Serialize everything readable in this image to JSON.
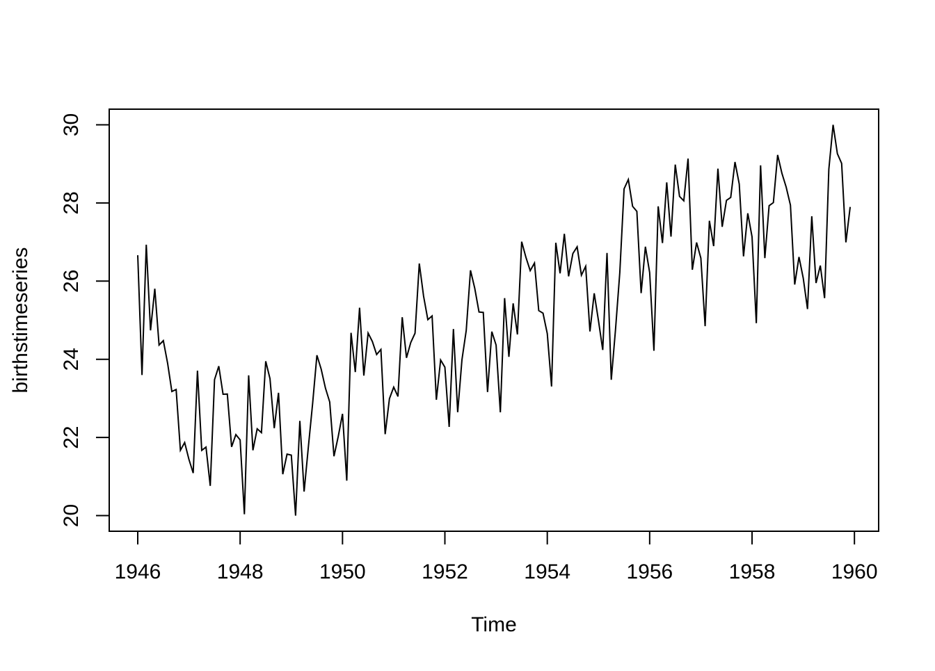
{
  "chart_data": {
    "type": "line",
    "title": "",
    "xlabel": "Time",
    "ylabel": "birthstimeseries",
    "series": [
      {
        "name": "birthstimeseries",
        "x_start_year": 1946,
        "points_per_year": 12,
        "values": [
          26.663,
          23.598,
          26.931,
          24.74,
          25.806,
          24.364,
          24.477,
          23.901,
          23.175,
          23.227,
          21.672,
          21.87,
          21.439,
          21.089,
          23.709,
          21.669,
          21.752,
          20.761,
          23.479,
          23.824,
          23.105,
          23.11,
          21.759,
          22.073,
          21.937,
          20.035,
          23.59,
          21.672,
          22.222,
          22.123,
          23.95,
          23.504,
          22.238,
          23.142,
          21.059,
          21.573,
          21.548,
          20.0,
          22.424,
          20.615,
          21.761,
          22.874,
          24.104,
          23.748,
          23.262,
          22.907,
          21.519,
          22.025,
          22.604,
          20.894,
          24.677,
          23.673,
          25.32,
          23.583,
          24.671,
          24.454,
          24.122,
          24.252,
          22.084,
          22.991,
          23.287,
          23.049,
          25.076,
          24.037,
          24.43,
          24.667,
          26.451,
          25.618,
          25.014,
          25.11,
          22.964,
          23.981,
          23.798,
          22.27,
          24.775,
          22.646,
          23.988,
          24.737,
          26.276,
          25.816,
          25.21,
          25.199,
          23.162,
          24.707,
          24.364,
          22.644,
          25.565,
          24.062,
          25.431,
          24.635,
          27.009,
          26.606,
          26.268,
          26.462,
          25.246,
          25.18,
          24.657,
          23.304,
          26.982,
          26.199,
          27.21,
          26.122,
          26.706,
          26.878,
          26.152,
          26.379,
          24.712,
          25.688,
          24.99,
          24.239,
          26.721,
          23.475,
          24.767,
          26.219,
          28.361,
          28.599,
          27.914,
          27.784,
          25.693,
          26.881,
          26.217,
          24.218,
          27.914,
          26.975,
          28.527,
          27.139,
          28.982,
          28.169,
          28.056,
          29.136,
          26.291,
          26.987,
          26.589,
          24.848,
          27.543,
          26.896,
          28.878,
          27.39,
          28.065,
          28.141,
          29.048,
          28.484,
          26.634,
          27.735,
          27.132,
          24.924,
          28.963,
          26.589,
          27.931,
          28.009,
          29.229,
          28.759,
          28.405,
          27.945,
          25.912,
          26.619,
          26.076,
          25.286,
          27.66,
          25.951,
          26.398,
          25.565,
          28.865,
          30.0,
          29.261,
          29.012,
          26.992,
          27.897
        ]
      }
    ],
    "x_ticks": [
      1946,
      1948,
      1950,
      1952,
      1954,
      1956,
      1958,
      1960
    ],
    "y_ticks": [
      20,
      22,
      24,
      26,
      28,
      30
    ],
    "xlim": [
      1945.443,
      1960.473
    ],
    "ylim": [
      19.6,
      30.4
    ],
    "grid": false,
    "legend": "none",
    "line_color": "#000000",
    "axis_color": "#000000",
    "background_color": "#ffffff"
  }
}
